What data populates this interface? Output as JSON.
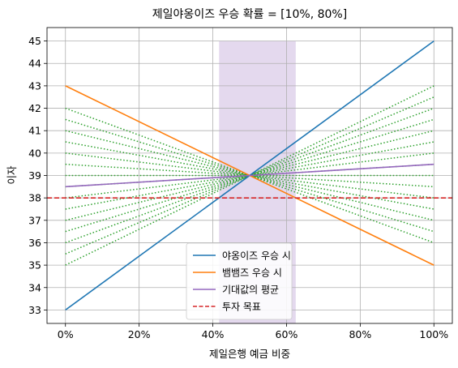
{
  "chart_data": {
    "type": "line",
    "title": "제일야옹이즈 우승 확률 = [10%, 80%]",
    "xlabel": "제일은행 예금 비중",
    "ylabel": "이자",
    "xlim": [
      -0.05,
      1.05
    ],
    "ylim": [
      32.4,
      45.6
    ],
    "x_ticks": [
      0,
      0.2,
      0.4,
      0.6,
      0.8,
      1.0
    ],
    "x_tick_labels": [
      "0%",
      "20%",
      "40%",
      "60%",
      "80%",
      "100%"
    ],
    "y_ticks": [
      33,
      34,
      35,
      36,
      37,
      38,
      39,
      40,
      41,
      42,
      43,
      44,
      45
    ],
    "y_tick_labels": [
      "33",
      "34",
      "35",
      "36",
      "37",
      "38",
      "39",
      "40",
      "41",
      "42",
      "43",
      "44",
      "45"
    ],
    "grid": true,
    "legend_position": "lower-center",
    "shaded_region": {
      "x": [
        0.417,
        0.625
      ],
      "y": [
        32.4,
        45
      ],
      "color": "#9467bd",
      "opacity": 0.25
    },
    "series": [
      {
        "name": "야옹이즈 우승 시",
        "x": [
          0,
          1
        ],
        "y": [
          33,
          45
        ],
        "color": "#1f77b4",
        "style": "solid"
      },
      {
        "name": "뱀뱀즈 우승 시",
        "x": [
          0,
          1
        ],
        "y": [
          43,
          35
        ],
        "color": "#ff7f0e",
        "style": "solid"
      },
      {
        "name": "기대값의 평균",
        "x": [
          0,
          1
        ],
        "y": [
          38.5,
          39.5
        ],
        "color": "#9467bd",
        "style": "solid"
      }
    ],
    "reference_lines": [
      {
        "name": "투자 목표",
        "y": 38,
        "color": "#d62728",
        "style": "dashed"
      }
    ],
    "fan_lines": {
      "color": "#2ca02c",
      "style": "dotted",
      "pivot": [
        0.5,
        39
      ],
      "x": [
        0,
        1
      ],
      "y_at_x0": [
        42,
        41.5,
        41,
        40.5,
        40,
        39.5,
        39,
        38.5,
        38,
        37.5,
        37,
        36.5,
        36,
        35.5,
        35
      ],
      "y_at_x1": [
        36,
        36.5,
        37,
        37.5,
        38,
        38.5,
        39,
        39.5,
        40,
        40.5,
        41,
        41.5,
        42,
        42.5,
        43
      ]
    }
  }
}
